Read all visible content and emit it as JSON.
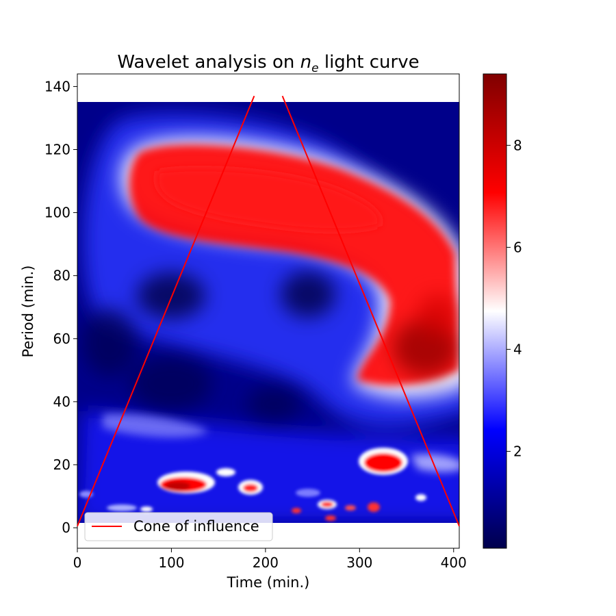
{
  "chart_data": {
    "type": "heatmap",
    "title_prefix": "Wavelet analysis on ",
    "title_var": "n",
    "title_sub": "e",
    "title_suffix": " light curve",
    "xlabel": "Time (min.)",
    "ylabel": "Period (min.)",
    "xlim": [
      0,
      406
    ],
    "ylim": [
      -6.5,
      144
    ],
    "data_extent": {
      "x": [
        0,
        406
      ],
      "y": [
        1.5,
        135
      ]
    },
    "xticks": [
      "0",
      "100",
      "200",
      "300",
      "400"
    ],
    "yticks": [
      "0",
      "20",
      "40",
      "60",
      "80",
      "100",
      "120",
      "140"
    ],
    "colorbar": {
      "colormap": "seismic",
      "range": [
        0.1,
        9.4
      ],
      "ticks": [
        "2",
        "4",
        "6",
        "8"
      ]
    },
    "power_regions": [
      {
        "feature": "main-band-left",
        "time": 160,
        "period": 108,
        "power": 7.0
      },
      {
        "feature": "main-band-right",
        "time": 280,
        "period": 102,
        "power": 6.6
      },
      {
        "feature": "band-bend",
        "time": 350,
        "period": 80,
        "power": 6.2
      },
      {
        "feature": "low-period-lobe",
        "time": 370,
        "period": 57,
        "power": 9.0
      },
      {
        "feature": "hook-tail",
        "time": 320,
        "period": 47,
        "power": 6.0
      },
      {
        "feature": "blob-small-period",
        "time": 110,
        "period": 13,
        "power": 8.0
      },
      {
        "feature": "blob-small-period",
        "time": 335,
        "period": 21,
        "power": 7.2
      },
      {
        "feature": "blob-small-period",
        "time": 270,
        "period": 7,
        "power": 8.0
      },
      {
        "feature": "blob-small-period",
        "time": 180,
        "period": 12,
        "power": 6.5
      }
    ],
    "series": [
      {
        "name": "Cone of influence",
        "color": "#ff0000",
        "x": [
          0,
          188,
          218,
          406
        ],
        "y": [
          0.5,
          137,
          137,
          0.5
        ]
      }
    ],
    "legend_position": "lower-left"
  }
}
